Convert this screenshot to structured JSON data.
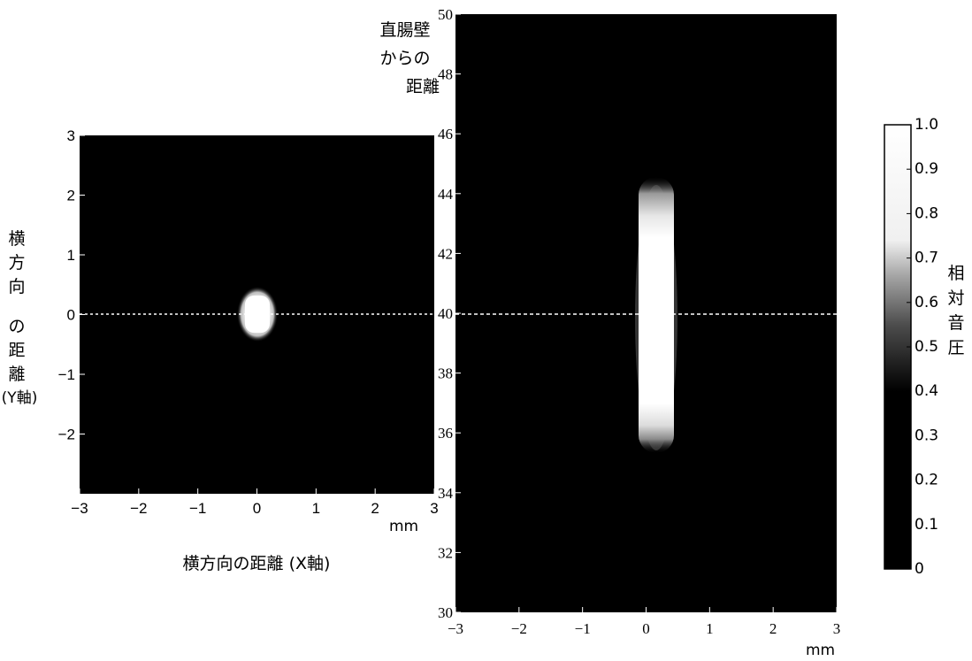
{
  "chart_data": [
    {
      "type": "heatmap",
      "title": "",
      "xlabel": "横方向の距離 (X軸)",
      "x_unit": "mm",
      "ylabel_lines": [
        "横",
        "方",
        "向",
        "の",
        "距",
        "離",
        "(Y軸)"
      ],
      "xlim": [
        -3,
        3
      ],
      "ylim": [
        -3,
        3
      ],
      "x_ticks": [
        "-3",
        "-2",
        "-1",
        "0",
        "1",
        "2",
        "3"
      ],
      "y_ticks": [
        "3",
        "2",
        "1",
        "0",
        "-1",
        "-2"
      ],
      "reference_line_y": 0,
      "focal_region": {
        "x_center": 0,
        "y_center": 0,
        "x_half_width": 0.25,
        "y_half_width": 0.35,
        "peak_relative_pressure": 1.0
      }
    },
    {
      "type": "heatmap",
      "title": "",
      "xlabel": "",
      "x_unit": "mm",
      "ylabel_lines": [
        "直腸壁",
        "からの",
        "距離"
      ],
      "xlim": [
        -3,
        3
      ],
      "ylim": [
        30,
        50
      ],
      "x_ticks": [
        "-3",
        "-2",
        "-1",
        "0",
        "1",
        "2",
        "3"
      ],
      "y_ticks": [
        "50",
        "48",
        "46",
        "44",
        "42",
        "40",
        "38",
        "36",
        "34",
        "32",
        "30"
      ],
      "reference_line_y": 40,
      "focal_region": {
        "x_center": 0,
        "y_center": 40,
        "x_half_width": 0.3,
        "y_min": 36,
        "y_max": 44,
        "peak_relative_pressure": 1.0
      }
    }
  ],
  "colorbar": {
    "label_chars": [
      "相",
      "対",
      "音",
      "圧"
    ],
    "range": [
      0,
      1.0
    ],
    "ticks": [
      "1.0",
      "0.9",
      "0.8",
      "0.7",
      "0.6",
      "0.5",
      "0.4",
      "0.3",
      "0.2",
      "0.1",
      "0"
    ],
    "colormap": "gray"
  }
}
